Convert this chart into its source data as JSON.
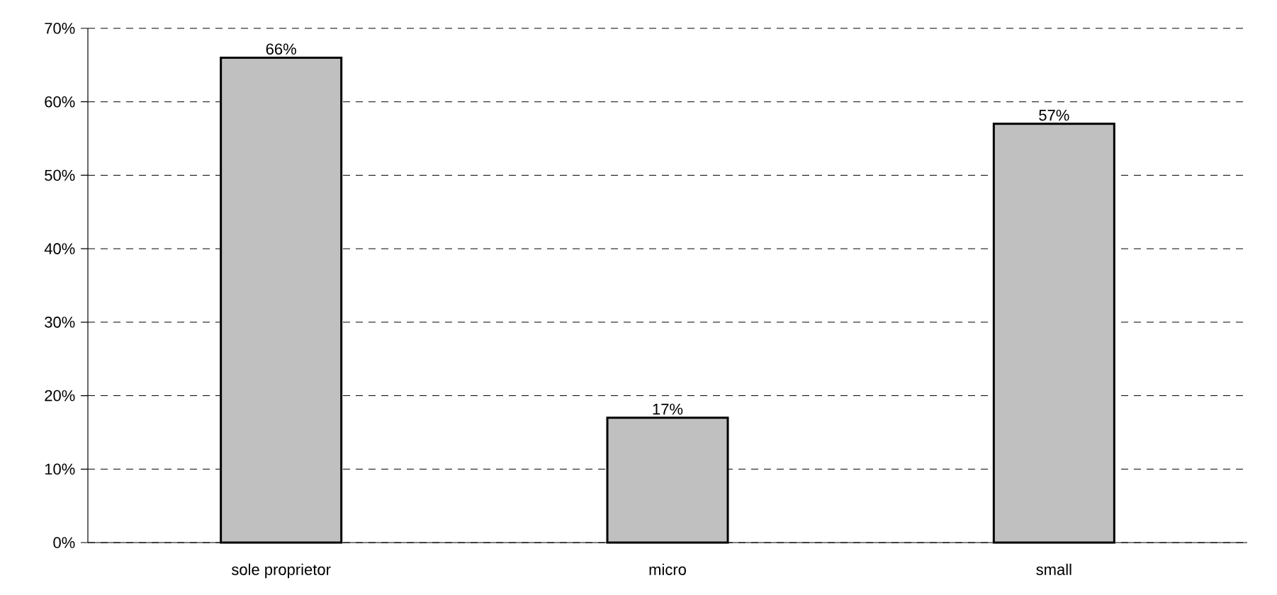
{
  "chart_data": {
    "type": "bar",
    "categories": [
      "sole proprietor",
      "micro",
      "small"
    ],
    "values": [
      66,
      17,
      57
    ],
    "color": "#c0c0c0",
    "value_labels": [
      "66%",
      "17%",
      "57%"
    ],
    "ylim": [
      0,
      70
    ],
    "yticks": [
      {
        "value": 0,
        "label": "0%"
      },
      {
        "value": 10,
        "label": "10%"
      },
      {
        "value": 20,
        "label": "20%"
      },
      {
        "value": 30,
        "label": "30%"
      },
      {
        "value": 40,
        "label": "40%"
      },
      {
        "value": 50,
        "label": "50%"
      },
      {
        "value": 60,
        "label": "60%"
      },
      {
        "value": 70,
        "label": "70%"
      }
    ],
    "grid": "y"
  }
}
